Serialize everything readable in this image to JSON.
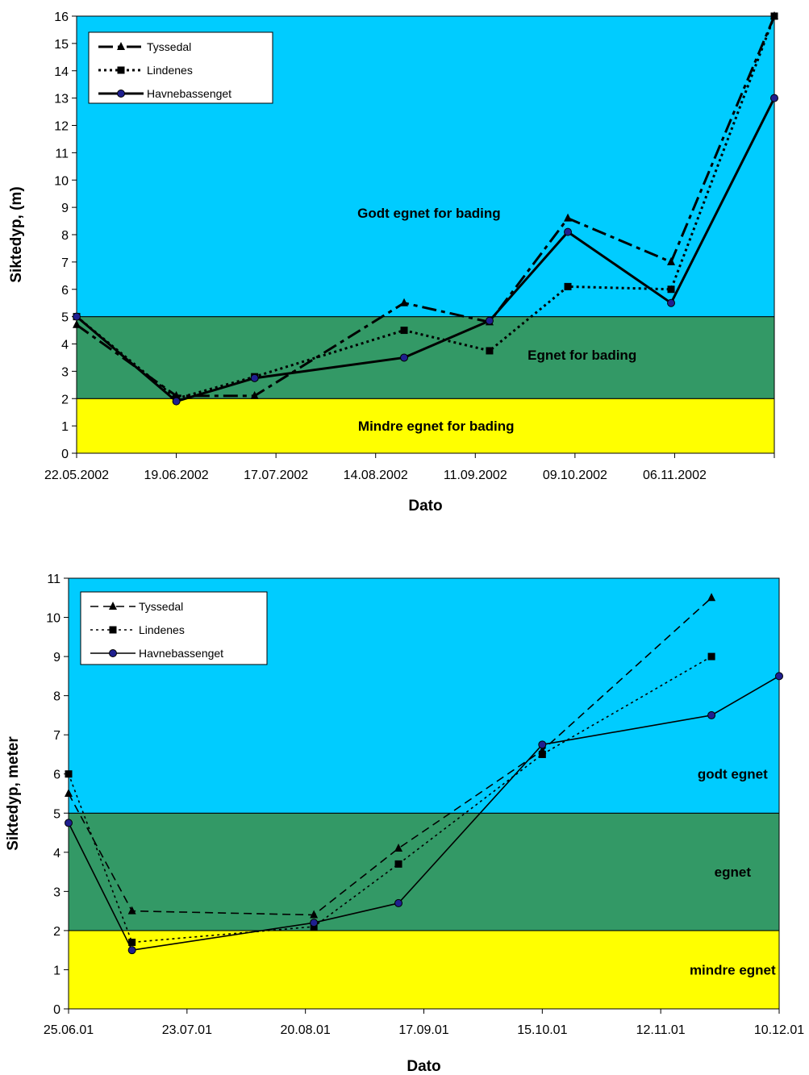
{
  "chart_data": [
    {
      "type": "line",
      "xlabel": "Dato",
      "ylabel": "Siktedyp, (m)",
      "ylim": [
        0,
        16
      ],
      "yticks": [
        0,
        1,
        2,
        3,
        4,
        5,
        6,
        7,
        8,
        9,
        10,
        11,
        12,
        13,
        14,
        15,
        16
      ],
      "xlim": [
        "2002-05-22",
        "2002-12-04"
      ],
      "xticks": [
        {
          "date": "2002-05-22",
          "label": "22.05.2002"
        },
        {
          "date": "2002-06-19",
          "label": "19.06.2002"
        },
        {
          "date": "2002-07-17",
          "label": "17.07.2002"
        },
        {
          "date": "2002-08-14",
          "label": "14.08.2002"
        },
        {
          "date": "2002-09-11",
          "label": "11.09.2002"
        },
        {
          "date": "2002-10-09",
          "label": "09.10.2002"
        },
        {
          "date": "2002-11-06",
          "label": "06.11.2002"
        }
      ],
      "grid": false,
      "legend": "top-left",
      "zones": [
        {
          "from": 0,
          "to": 2,
          "color": "#ffff00",
          "label": "Mindre egnet for bading",
          "label_x": "2002-08-31",
          "label_y": 1.0
        },
        {
          "from": 2,
          "to": 5,
          "color": "#339966",
          "label": "Egnet for bading",
          "label_x": "2002-10-11",
          "label_y": 3.6
        },
        {
          "from": 5,
          "to": 16,
          "color": "#00ccff",
          "label": "Godt egnet for bading",
          "label_x": "2002-08-29",
          "label_y": 8.8
        }
      ],
      "series": [
        {
          "name": "Tyssedal",
          "style": "dashdot",
          "marker": "triangle",
          "color": "#000000",
          "x": [
            "2002-05-22",
            "2002-06-19",
            "2002-07-11",
            "2002-08-22",
            "2002-09-15",
            "2002-10-07",
            "2002-11-05",
            "2002-12-04"
          ],
          "y": [
            4.7,
            2.1,
            2.1,
            5.5,
            4.8,
            8.6,
            7.0,
            16.0
          ]
        },
        {
          "name": "Lindenes",
          "style": "dotted",
          "marker": "square",
          "color": "#000000",
          "x": [
            "2002-05-22",
            "2002-06-19",
            "2002-07-11",
            "2002-08-22",
            "2002-09-15",
            "2002-10-07",
            "2002-11-05",
            "2002-12-04"
          ],
          "y": [
            5.0,
            2.0,
            2.8,
            4.5,
            3.75,
            6.1,
            6.0,
            16.0
          ]
        },
        {
          "name": "Havnebassenget",
          "style": "solid",
          "marker": "circle",
          "color": "#000000",
          "x": [
            "2002-05-22",
            "2002-06-19",
            "2002-07-11",
            "2002-08-22",
            "2002-09-15",
            "2002-10-07",
            "2002-11-05",
            "2002-12-04"
          ],
          "y": [
            5.0,
            1.9,
            2.75,
            3.5,
            4.85,
            8.1,
            5.5,
            13.0
          ]
        }
      ]
    },
    {
      "type": "line",
      "xlabel": "Dato",
      "ylabel": "Siktedyp, meter",
      "ylim": [
        0,
        11
      ],
      "yticks": [
        0,
        1,
        2,
        3,
        4,
        5,
        6,
        7,
        8,
        9,
        10,
        11
      ],
      "xlim": [
        "2001-06-25",
        "2001-12-10"
      ],
      "xticks": [
        {
          "date": "2001-06-25",
          "label": "25.06.01"
        },
        {
          "date": "2001-07-23",
          "label": "23.07.01"
        },
        {
          "date": "2001-08-20",
          "label": "20.08.01"
        },
        {
          "date": "2001-09-17",
          "label": "17.09.01"
        },
        {
          "date": "2001-10-15",
          "label": "15.10.01"
        },
        {
          "date": "2001-11-12",
          "label": "12.11.01"
        },
        {
          "date": "2001-12-10",
          "label": "10.12.01"
        }
      ],
      "grid": false,
      "legend": "top-left",
      "zones": [
        {
          "from": 0,
          "to": 2,
          "color": "#ffff00",
          "label": "mindre egnet",
          "label_x": "2001-11-29",
          "label_y": 1.0
        },
        {
          "from": 2,
          "to": 5,
          "color": "#339966",
          "label": "egnet",
          "label_x": "2001-11-29",
          "label_y": 3.5
        },
        {
          "from": 5,
          "to": 11,
          "color": "#00ccff",
          "label": "godt egnet",
          "label_x": "2001-11-29",
          "label_y": 6.0
        }
      ],
      "series": [
        {
          "name": "Tyssedal",
          "style": "dashed",
          "marker": "triangle",
          "color": "#000000",
          "x": [
            "2001-06-25",
            "2001-07-10",
            "2001-08-22",
            "2001-09-11",
            "2001-10-15",
            "2001-11-24"
          ],
          "y": [
            5.5,
            2.5,
            2.4,
            4.1,
            6.6,
            10.5
          ]
        },
        {
          "name": "Lindenes",
          "style": "dotted",
          "marker": "square",
          "color": "#000000",
          "x": [
            "2001-06-25",
            "2001-07-10",
            "2001-08-22",
            "2001-09-11",
            "2001-10-15",
            "2001-11-24"
          ],
          "y": [
            6.0,
            1.7,
            2.1,
            3.7,
            6.5,
            9.0
          ]
        },
        {
          "name": "Havnebassenget",
          "style": "solid",
          "marker": "circle",
          "color": "#000000",
          "x": [
            "2001-06-25",
            "2001-07-10",
            "2001-08-22",
            "2001-09-11",
            "2001-10-15",
            "2001-11-24",
            "2001-12-10"
          ],
          "y": [
            4.75,
            1.5,
            2.2,
            2.7,
            6.75,
            7.5,
            8.5
          ]
        }
      ]
    }
  ]
}
